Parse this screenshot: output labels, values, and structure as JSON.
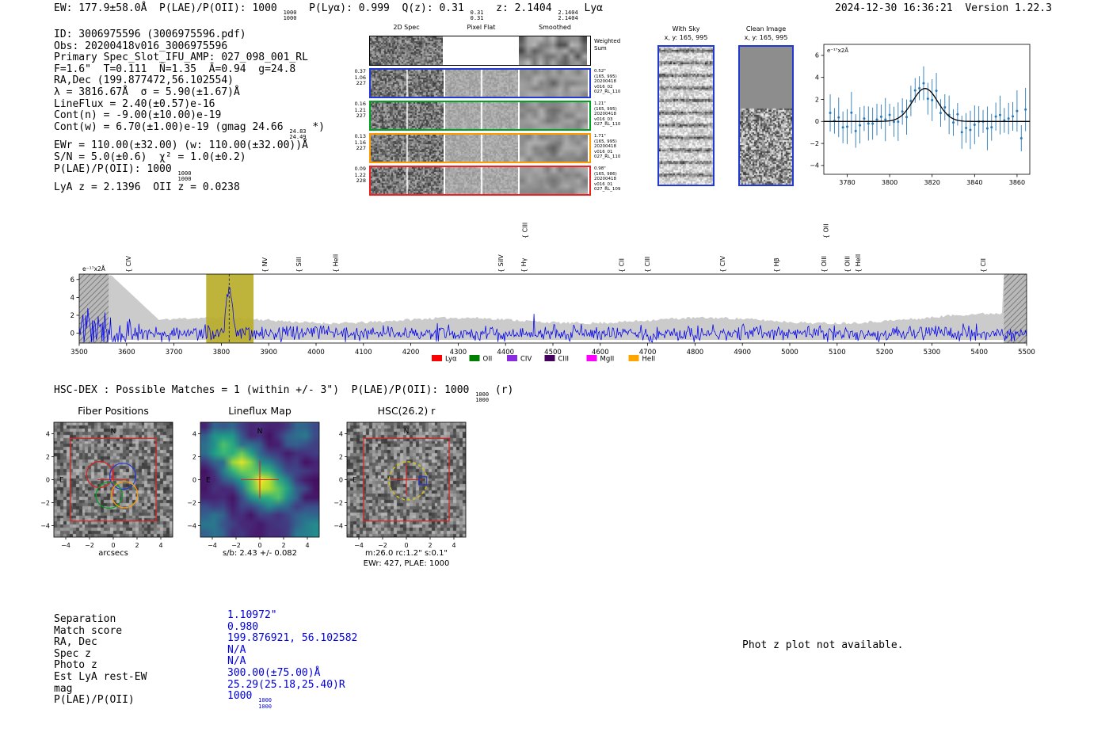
{
  "meta": {
    "stamp": "2024-12-30 16:36:21  Version 1.22.3"
  },
  "topline": {
    "text": "EW: 177.9±58.0Å  P(LAE)/P(OII): 1000 {{1000|1000}}  P(Lyα): 0.999  Q(z): 0.31 {{0.31|0.31}}  z: 2.1404 {{2.1404|2.1404}} Lyα"
  },
  "info_block": {
    "lines": [
      "ID: 3006975596 (3006975596.pdf)",
      "Obs: 20200418v016_3006975596",
      "Primary Spec_Slot_IFU_AMP: 027_098_001_RL",
      "F=1.6\"  T=0.111  N̄=1.35  Ā=0.94  g=24.8",
      "RA,Dec (199.877472,56.102554)",
      "λ = 3816.67Å  σ = 5.90(±1.67)Å",
      "LineFlux = 2.40(±0.57)e-16",
      "Cont(n) = -9.00(±10.00)e-19",
      "Cont(w) = 6.70(±1.00)e-19 (gmag 24.66 {{24.83|24.49}} *)",
      "EWr = 110.00(±32.00) (w: 110.00(±32.00))Å",
      "S/N = 5.0(±0.6)  χ² = 1.0(±0.2)",
      "P(LAE)/P(OII): 1000 {{1000|1000}}",
      "LyA z = 2.1396  OII z = 0.0238"
    ]
  },
  "spec2d": {
    "col_headers": [
      "2D Spec",
      "Pixel Flat",
      "Smoothed"
    ],
    "weighted_label": "Weighted\nSum",
    "rows": [
      {
        "border": "#000000",
        "left": "",
        "right": ""
      },
      {
        "border": "#2238d4",
        "left": "0.37\n1.06\n227",
        "right": "0.52\"\n(165, 995)\n20200418\nv016_02\n027_RL_110"
      },
      {
        "border": "#00a321",
        "left": "0.16\n1.21\n227",
        "right": "1.21\"\n(165, 995)\n20200418\nv016_03\n027_RL_110"
      },
      {
        "border": "#ff9c00",
        "left": "0.13\n1.16\n227",
        "right": "1.71\"\n(165, 995)\n20200418\nv016_01\n027_RL_110"
      },
      {
        "border": "#f02020",
        "left": "0.09\n1.22\n228",
        "right": "0.98\"\n(165, 986)\n20200418\nv016_01\n027_RL_109"
      }
    ]
  },
  "sky_panels": [
    {
      "title": "With Sky",
      "coords": "x, y: 165, 995"
    },
    {
      "title": "Clean Image",
      "coords": "x, y: 165, 995"
    }
  ],
  "chart_data": [
    {
      "name": "emission-line-fit",
      "type": "scatter",
      "ylabel": "e⁻¹⁷x2Å",
      "xlim": [
        3769,
        3866
      ],
      "ylim": [
        -4.8,
        7.0
      ],
      "xticks": [
        3780,
        3800,
        3820,
        3840,
        3860
      ],
      "yticks": [
        6,
        4,
        2,
        0,
        -2,
        -4
      ],
      "fit": {
        "center": 3816.67,
        "sigma": 5.9,
        "amplitude": 3.0,
        "baseline": 0.0
      },
      "point_color": "#2878b8",
      "fit_color": "#000000"
    },
    {
      "name": "full-spectrum",
      "type": "line",
      "ylabel": "e⁻¹⁷x2Å",
      "xlim": [
        3500,
        5500
      ],
      "ylim": [
        -1.1,
        6.6
      ],
      "xticks": [
        3500,
        3600,
        3700,
        3800,
        3900,
        4000,
        4100,
        4200,
        4300,
        4400,
        4500,
        4600,
        4700,
        4800,
        4900,
        5000,
        5100,
        5200,
        5300,
        5400,
        5500
      ],
      "yticks": [
        0,
        2,
        4,
        6
      ],
      "series_color": "#0000ee",
      "envelope_color": "#c2c2c2",
      "highlight_band": {
        "x0": 3768,
        "x1": 3868,
        "color": "#b9ad2a"
      },
      "masked_regions": [
        [
          3500,
          3562
        ],
        [
          5452,
          5500
        ]
      ],
      "emission_line": {
        "center": 3816.67,
        "sigma": 5.9,
        "peak": 5.3
      },
      "line_labels": [
        {
          "label": "CIV",
          "wave": 3609,
          "color": "#e89817",
          "row": 0
        },
        {
          "label": "NV",
          "wave": 3896,
          "color": "#e02222",
          "row": 0
        },
        {
          "label": "SiII",
          "wave": 3968,
          "color": "#e02222",
          "row": 0
        },
        {
          "label": "HeII",
          "wave": 4046,
          "color": "#ff00ff",
          "row": 0
        },
        {
          "label": "SiIV",
          "wave": 4395,
          "color": "#e02222",
          "row": 0
        },
        {
          "label": "CIII",
          "wave": 4446,
          "color": "#e89817",
          "row": 1
        },
        {
          "label": "Hγ",
          "wave": 4443,
          "color": "#0f8c0f",
          "row": 0
        },
        {
          "label": "CII",
          "wave": 4650,
          "color": "#ff00ff",
          "row": 0
        },
        {
          "label": "CIII",
          "wave": 4704,
          "color": "#8a2be2",
          "row": 0
        },
        {
          "label": "CIV",
          "wave": 4863,
          "color": "#e02222",
          "row": 0
        },
        {
          "label": "Hβ",
          "wave": 4977,
          "color": "#0f8c0f",
          "row": 0
        },
        {
          "label": "OII",
          "wave": 5081,
          "color": "#ff00ff",
          "row": 1
        },
        {
          "label": "OIII",
          "wave": 5077,
          "color": "#0f8c0f",
          "row": 0
        },
        {
          "label": "OIII",
          "wave": 5126,
          "color": "#0f8c0f",
          "row": 0
        },
        {
          "label": "HeII",
          "wave": 5149,
          "color": "#e02222",
          "row": 0
        },
        {
          "label": "CII",
          "wave": 5413,
          "color": "#e89817",
          "row": 0
        }
      ],
      "legend": [
        {
          "label": "Lyα",
          "color": "#ff0000"
        },
        {
          "label": "OII",
          "color": "#008000"
        },
        {
          "label": "CIV",
          "color": "#8a2be2"
        },
        {
          "label": "CIII",
          "color": "#43005c"
        },
        {
          "label": "MgII",
          "color": "#ff00ff"
        },
        {
          "label": "HeII",
          "color": "#ffa500"
        }
      ]
    }
  ],
  "cutout_section": {
    "header": "HSC-DEX : Possible Matches = 1 (within +/- 3\")  P(LAE)/P(OII): 1000 {{1000|1000}} (r)",
    "axis_ticks": [
      -4,
      -2,
      0,
      2,
      4
    ],
    "panels": [
      {
        "title": "Fiber Positions",
        "xlabels": [
          "arcsecs"
        ],
        "compass_n": "N",
        "compass_e": "E",
        "fibers": [
          {
            "dx": -1.15,
            "dy": 0.45,
            "color": "#e02222"
          },
          {
            "dx": 0.8,
            "dy": 0.3,
            "color": "#2238d4"
          },
          {
            "dx": -0.35,
            "dy": -1.35,
            "color": "#00a321"
          },
          {
            "dx": 0.95,
            "dy": -1.3,
            "color": "#ff9c00"
          }
        ]
      },
      {
        "title": "Lineflux Map",
        "xlabels": [
          "s/b: 2.43 +/- 0.082"
        ],
        "compass_n": "N",
        "compass_e": "E"
      },
      {
        "title": "HSC(26.2) r",
        "xlabels": [
          "m:26.0 rc:1.2\"  s:0.1\"",
          "EWr: 427, PLAE: 1000"
        ],
        "compass_n": "N",
        "compass_e": "E"
      }
    ]
  },
  "match_table": {
    "rows": [
      {
        "label": "Separation",
        "value": "1.10972\""
      },
      {
        "label": "Match score",
        "value": "0.980"
      },
      {
        "label": "RA, Dec",
        "value": "199.876921, 56.102582"
      },
      {
        "label": "Spec z",
        "value": "N/A"
      },
      {
        "label": "Photo z",
        "value": "N/A"
      },
      {
        "label": "Est LyA rest-EW",
        "value": "300.00(±75.00)Å"
      },
      {
        "label": "mag",
        "value": "25.29(25.18,25.40)R"
      },
      {
        "label": "P(LAE)/P(OII)",
        "value": "1000 {{1000|1000}}"
      }
    ]
  },
  "photz_note": "Phot z plot not available."
}
